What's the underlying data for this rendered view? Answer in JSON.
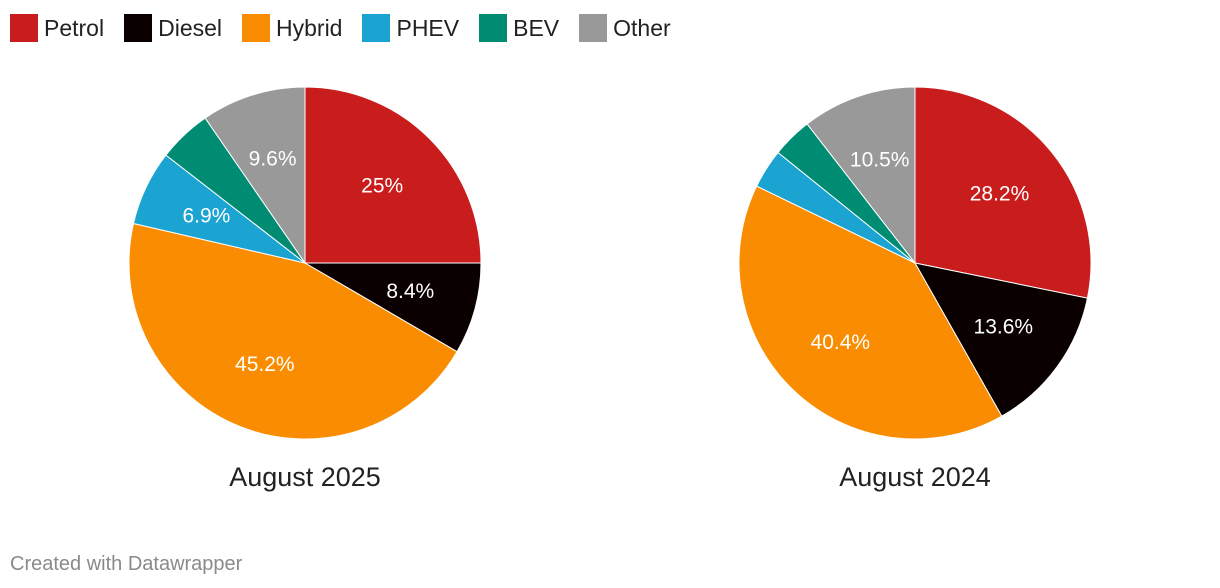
{
  "legend": [
    {
      "name": "Petrol",
      "color": "#c91c1c"
    },
    {
      "name": "Diesel",
      "color": "#0b0000"
    },
    {
      "name": "Hybrid",
      "color": "#f98c00"
    },
    {
      "name": "PHEV",
      "color": "#1ba3d1"
    },
    {
      "name": "BEV",
      "color": "#008c72"
    },
    {
      "name": "Other",
      "color": "#999999"
    }
  ],
  "chart_data": [
    {
      "type": "pie",
      "title": "August 2025",
      "categories": [
        "Petrol",
        "Diesel",
        "Hybrid",
        "PHEV",
        "BEV",
        "Other"
      ],
      "values": [
        25,
        8.4,
        45.2,
        6.9,
        4.9,
        9.6
      ],
      "labels": [
        "25%",
        "8.4%",
        "45.2%",
        "6.9%",
        "",
        "9.6%"
      ]
    },
    {
      "type": "pie",
      "title": "August 2024",
      "categories": [
        "Petrol",
        "Diesel",
        "Hybrid",
        "PHEV",
        "BEV",
        "Other"
      ],
      "values": [
        28.2,
        13.6,
        40.4,
        3.6,
        3.7,
        10.5
      ],
      "labels": [
        "28.2%",
        "13.6%",
        "40.4%",
        "",
        "",
        "10.5%"
      ]
    }
  ],
  "footer": "Created with Datawrapper"
}
